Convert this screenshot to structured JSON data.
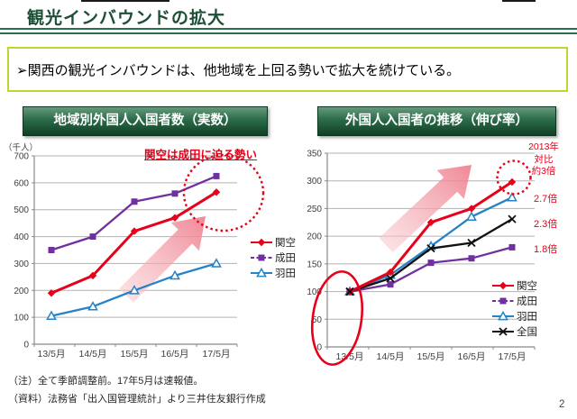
{
  "page": {
    "title": "観光インバウンドの拡大",
    "bullet": "➢関西の観光インバウンドは、他地域を上回る勢いで拡大を続けている。",
    "notes": [
      "（注）全て季節調整前。17年5月は速報値。",
      "（資料）法務省「出入国管理統計」より三井住友銀行作成"
    ],
    "page_number": "2"
  },
  "colors": {
    "title_green": "#1c4f35",
    "header_green_dark": "#123f24",
    "bullet_border": "#c0d434",
    "accent_red": "#e60019",
    "kanku_red": "#e60019",
    "narita_purple": "#7030a0",
    "haneda_blue": "#2583c6",
    "zenkoku_black": "#111111",
    "gridline": "#b3b3b3"
  },
  "chart_data": [
    {
      "type": "line",
      "title": "地域別外国人入国者数（実数）",
      "unit_label": "（千人）",
      "categories": [
        "13/5月",
        "14/5月",
        "15/5月",
        "16/5月",
        "17/5月"
      ],
      "series": [
        {
          "key": "kanku",
          "name": "関空",
          "color": "#e60019",
          "marker": "diamond",
          "values": [
            190,
            255,
            420,
            470,
            565
          ]
        },
        {
          "key": "narita",
          "name": "成田",
          "color": "#7030a0",
          "marker": "square",
          "values": [
            350,
            400,
            530,
            560,
            625
          ]
        },
        {
          "key": "haneda",
          "name": "羽田",
          "color": "#2583c6",
          "marker": "triangle-open",
          "values": [
            105,
            140,
            200,
            255,
            300
          ]
        }
      ],
      "ylim": [
        0,
        700
      ],
      "ytick": 100,
      "grid": true,
      "legend_position": "right",
      "annotation": "関空は成田に迫る勢い",
      "emphasis_shapes": [
        "pink-up-arrow",
        "red-dotted-circle-around-17/5-points"
      ]
    },
    {
      "type": "line",
      "title": "外国人入国者の推移（伸び率）",
      "categories": [
        "13/5月",
        "14/5月",
        "15/5月",
        "16/5月",
        "17/5月"
      ],
      "series": [
        {
          "key": "kanku",
          "name": "関空",
          "color": "#e60019",
          "marker": "diamond",
          "values": [
            100,
            135,
            225,
            250,
            298
          ],
          "growth_label": "約3倍"
        },
        {
          "key": "narita",
          "name": "成田",
          "color": "#7030a0",
          "marker": "square",
          "values": [
            100,
            113,
            152,
            160,
            180
          ],
          "growth_label": "1.8倍"
        },
        {
          "key": "haneda",
          "name": "羽田",
          "color": "#2583c6",
          "marker": "triangle-open",
          "values": [
            100,
            130,
            182,
            235,
            270
          ],
          "growth_label": "2.7倍"
        },
        {
          "key": "zenkoku",
          "name": "全国",
          "color": "#111111",
          "marker": "x",
          "values": [
            100,
            124,
            178,
            188,
            231
          ],
          "growth_label": "2.3倍"
        }
      ],
      "ylim": [
        0,
        350
      ],
      "ytick": 50,
      "grid": true,
      "legend_position": "right",
      "annotations": {
        "comparison_line1": "2013年",
        "comparison_line2": "対比",
        "comparison_line3": "約3倍"
      },
      "emphasis_shapes": [
        "pink-up-arrow",
        "red-dotted-circle-around-kanku-17/5",
        "red-ellipse-around-13/5-baseline"
      ]
    }
  ]
}
